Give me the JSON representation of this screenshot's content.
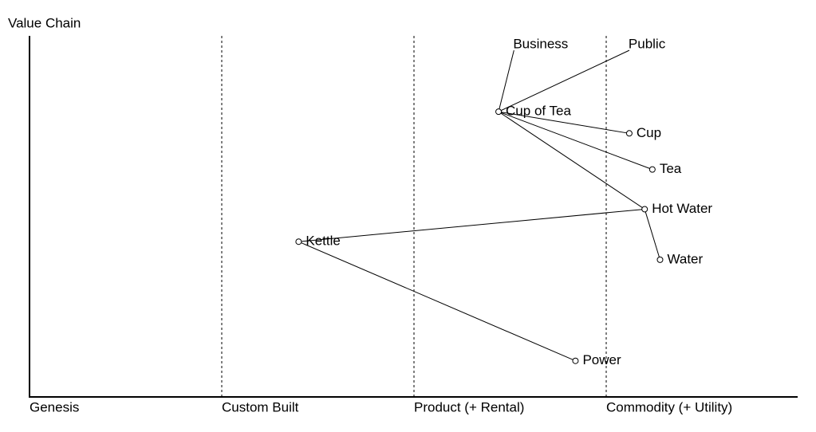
{
  "chart_data": {
    "type": "wardley",
    "y_label": "Value Chain",
    "xlim": [
      0,
      1
    ],
    "ylim": [
      0,
      1
    ],
    "xticks": [
      {
        "value": 0,
        "label": "Genesis"
      },
      {
        "value": 0.25,
        "label": "Custom Built"
      },
      {
        "value": 0.5,
        "label": "Product (+ Rental)"
      },
      {
        "value": 0.75,
        "label": "Commodity (+ Utility)"
      }
    ],
    "nodes": [
      {
        "label": "Business",
        "evolution": 0.63,
        "visibility": 0.96,
        "kind": "anchor"
      },
      {
        "label": "Public",
        "evolution": 0.78,
        "visibility": 0.96,
        "kind": "anchor"
      },
      {
        "label": "Cup of Tea",
        "evolution": 0.61,
        "visibility": 0.79,
        "kind": "component"
      },
      {
        "label": "Cup",
        "evolution": 0.78,
        "visibility": 0.73,
        "kind": "component"
      },
      {
        "label": "Tea",
        "evolution": 0.81,
        "visibility": 0.63,
        "kind": "component"
      },
      {
        "label": "Hot Water",
        "evolution": 0.8,
        "visibility": 0.52,
        "kind": "component"
      },
      {
        "label": "Water",
        "evolution": 0.82,
        "visibility": 0.38,
        "kind": "component"
      },
      {
        "label": "Kettle",
        "evolution": 0.35,
        "visibility": 0.43,
        "kind": "component"
      },
      {
        "label": "Power",
        "evolution": 0.71,
        "visibility": 0.1,
        "kind": "component"
      }
    ],
    "links": [
      [
        "Business",
        "Cup of Tea"
      ],
      [
        "Public",
        "Cup of Tea"
      ],
      [
        "Cup of Tea",
        "Cup"
      ],
      [
        "Cup of Tea",
        "Tea"
      ],
      [
        "Cup of Tea",
        "Hot Water"
      ],
      [
        "Hot Water",
        "Water"
      ],
      [
        "Hot Water",
        "Kettle"
      ],
      [
        "Kettle",
        "Power"
      ]
    ]
  }
}
